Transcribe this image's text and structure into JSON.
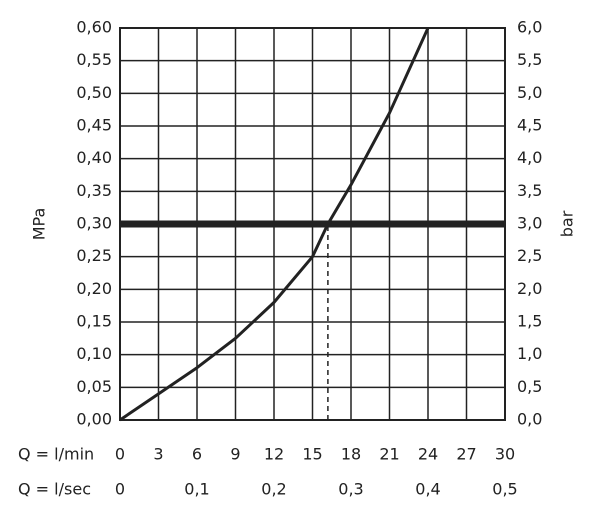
{
  "chart_data": {
    "type": "line",
    "x": [
      0,
      3,
      6,
      9,
      12,
      15,
      16.2,
      18,
      21,
      24
    ],
    "series": [
      {
        "color": "#222222",
        "values": [
          0,
          0.04,
          0.08,
          0.125,
          0.18,
          0.25,
          0.3,
          0.36,
          0.47,
          0.6
        ]
      }
    ],
    "xlabel": "Q = l/min",
    "xlim": [
      0,
      30
    ],
    "xticks": [
      0,
      3,
      6,
      9,
      12,
      15,
      18,
      21,
      24,
      27,
      30
    ],
    "x2label": "Q = l/sec",
    "x2lim": [
      0,
      0.5
    ],
    "x2ticks": [
      0,
      {
        "value": 0.1,
        "label": "0,1"
      },
      {
        "value": 0.2,
        "label": "0,2"
      },
      {
        "value": 0.3,
        "label": "0,3"
      },
      {
        "value": 0.4,
        "label": "0,4"
      },
      {
        "value": 0.5,
        "label": "0,5"
      }
    ],
    "ylabel": "MPa",
    "ylim": [
      0,
      0.6
    ],
    "yticks": [
      {
        "value": 0,
        "label": "0,00"
      },
      {
        "value": 0.05,
        "label": "0,05"
      },
      {
        "value": 0.1,
        "label": "0,10"
      },
      {
        "value": 0.15,
        "label": "0,15"
      },
      {
        "value": 0.2,
        "label": "0,20"
      },
      {
        "value": 0.25,
        "label": "0,25"
      },
      {
        "value": 0.3,
        "label": "0,30"
      },
      {
        "value": 0.35,
        "label": "0,35"
      },
      {
        "value": 0.4,
        "label": "0,40"
      },
      {
        "value": 0.45,
        "label": "0,45"
      },
      {
        "value": 0.5,
        "label": "0,50"
      },
      {
        "value": 0.55,
        "label": "0,55"
      },
      {
        "value": 0.6,
        "label": "0,60"
      }
    ],
    "y2label": "bar",
    "y2lim": [
      0,
      6
    ],
    "y2ticks": [
      {
        "value": 0,
        "label": "0,0"
      },
      {
        "value": 0.5,
        "label": "0,5"
      },
      {
        "value": 1,
        "label": "1,0"
      },
      {
        "value": 1.5,
        "label": "1,5"
      },
      {
        "value": 2,
        "label": "2,0"
      },
      {
        "value": 2.5,
        "label": "2,5"
      },
      {
        "value": 3,
        "label": "3,0"
      },
      {
        "value": 3.5,
        "label": "3,5"
      },
      {
        "value": 4,
        "label": "4,0"
      },
      {
        "value": 4.5,
        "label": "4,5"
      },
      {
        "value": 5,
        "label": "5,0"
      },
      {
        "value": 5.5,
        "label": "5,5"
      },
      {
        "value": 6,
        "label": "6,0"
      }
    ],
    "hline": 0.3,
    "vline": {
      "x": 16.2,
      "y": 0.3
    },
    "grid": true
  }
}
